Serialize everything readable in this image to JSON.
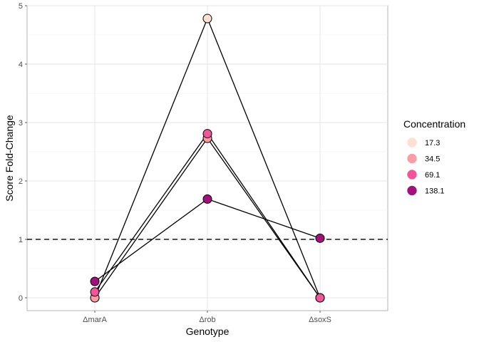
{
  "chart_data": {
    "type": "line",
    "title": "",
    "xlabel": "Genotype",
    "ylabel": "Score Fold-Change",
    "categories": [
      "ΔmarA",
      "Δrob",
      "ΔsoxS"
    ],
    "ylim": [
      -0.22,
      5
    ],
    "yticks": [
      0,
      1,
      2,
      3,
      4,
      5
    ],
    "reference_line": {
      "y": 1,
      "style": "dashed"
    },
    "grid": true,
    "legend": {
      "title": "Concentration",
      "position": "right"
    },
    "series": [
      {
        "name": "17.3",
        "color": "#fee0d2",
        "values": [
          0.0,
          4.78,
          0.0
        ]
      },
      {
        "name": "34.5",
        "color": "#f99da4",
        "values": [
          0.0,
          2.73,
          0.0
        ]
      },
      {
        "name": "69.1",
        "color": "#f1559a",
        "values": [
          0.1,
          2.81,
          0.0
        ]
      },
      {
        "name": "138.1",
        "color": "#a3107a",
        "values": [
          0.28,
          1.69,
          1.02
        ]
      }
    ]
  }
}
